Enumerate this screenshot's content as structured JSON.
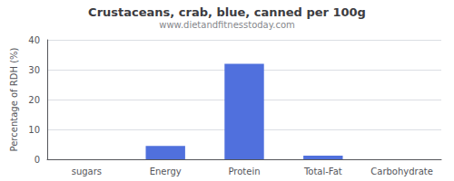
{
  "chart_data": {
    "type": "bar",
    "title": "Crustaceans, crab, blue, canned per 100g",
    "subtitle": "www.dietandfitnesstoday.com",
    "categories": [
      "sugars",
      "Energy",
      "Protein",
      "Total-Fat",
      "Carbohydrate"
    ],
    "values": [
      0,
      4.5,
      32,
      1.2,
      0
    ],
    "ylabel": "Percentage of RDH (%)",
    "ylim": [
      0,
      40
    ],
    "yticks": [
      0,
      10,
      20,
      30,
      40
    ],
    "grid": true
  }
}
